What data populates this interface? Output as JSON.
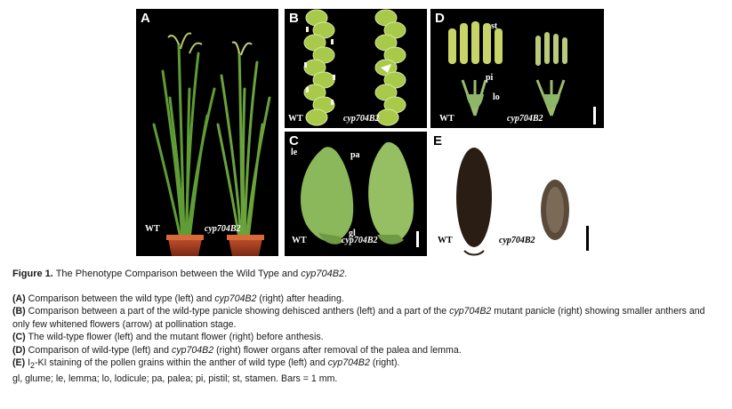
{
  "panels": {
    "A": {
      "letter": "A",
      "left": "WT",
      "right": "cyp704B2"
    },
    "B": {
      "letter": "B",
      "left": "WT",
      "right": "cyp704B2"
    },
    "C": {
      "letter": "C",
      "left": "WT",
      "right": "cyp704B2",
      "arrow_le": "le",
      "arrow_pa": "pa",
      "arrow_gl": "gl"
    },
    "D": {
      "letter": "D",
      "left": "WT",
      "right": "cyp704B2",
      "arrow_st": "st",
      "arrow_pi": "pi",
      "arrow_lo": "lo"
    },
    "E": {
      "letter": "E",
      "left": "WT",
      "right": "cyp704B2"
    }
  },
  "caption": {
    "title_label": "Figure 1.",
    "title_text": "The Phenotype Comparison between the Wild Type and",
    "title_gene": "cyp704B2",
    "title_end": ".",
    "lines": {
      "a_tag": "(A)",
      "a_1": "Comparison between the wild type (left) and",
      "a_gene": "cyp704B2",
      "a_2": "(right) after heading.",
      "b_tag": "(B)",
      "b_1": "Comparison between a part of the wild-type panicle showing dehisced anthers (left) and a part of the",
      "b_gene": "cyp704B2",
      "b_2": "mutant panicle (right) showing smaller anthers and only few whitened flowers (arrow) at pollination stage.",
      "c_tag": "(C)",
      "c_1": "The wild-type flower (left) and the mutant flower (right) before anthesis.",
      "d_tag": "(D)",
      "d_1": "Comparison of wild-type (left) and",
      "d_gene": "cyp704B2",
      "d_2": "(right) flower organs after removal of the palea and lemma.",
      "e_tag": "(E)",
      "e_1": "I",
      "e_sub": "2",
      "e_2": "-KI staining of the pollen grains within the anther of wild type (left) and",
      "e_gene": "cyp704B2",
      "e_3": "(right).",
      "abbr": "gl, glume; le, lemma; lo, lodicule; pa, palea; pi, pistil; st, stamen. Bars = 1 mm."
    }
  }
}
